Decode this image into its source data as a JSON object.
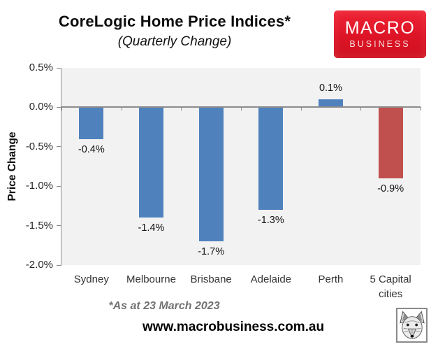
{
  "chart_data": {
    "type": "bar",
    "title": "CoreLogic Home Price Indices*",
    "subtitle": "(Quarterly Change)",
    "categories": [
      "Sydney",
      "Melbourne",
      "Brisbane",
      "Adelaide",
      "Perth",
      "5 Capital cities"
    ],
    "values": [
      -0.4,
      -1.4,
      -1.7,
      -1.3,
      0.1,
      -0.9
    ],
    "value_labels": [
      "-0.4%",
      "-1.4%",
      "-1.7%",
      "-1.3%",
      "0.1%",
      "-0.9%"
    ],
    "bar_colors": [
      "#4F81BD",
      "#4F81BD",
      "#4F81BD",
      "#4F81BD",
      "#4F81BD",
      "#C0504D"
    ],
    "series_color_default": "#4F81BD",
    "highlight_color": "#C0504D",
    "xlabel": "",
    "ylabel": "Price Change",
    "ylim": [
      -2.0,
      0.5
    ],
    "ytick_step": 0.5,
    "ytick_labels": [
      "0.5%",
      "0.0%",
      "-0.5%",
      "-1.0%",
      "-1.5%",
      "-2.0%"
    ],
    "plot_bg": "#F2F2F2",
    "axis_color": "#8C8C8C",
    "grid": false,
    "legend": "none"
  },
  "logo": {
    "line1": "MACRO",
    "line2": "BUSINESS",
    "bg_color": "#DC1426",
    "text_color": "#FFFFFF"
  },
  "footer": {
    "note": "*As at 23 March 2023",
    "website": "www.macrobusiness.com.au",
    "corner_icon": "fox-logo"
  }
}
